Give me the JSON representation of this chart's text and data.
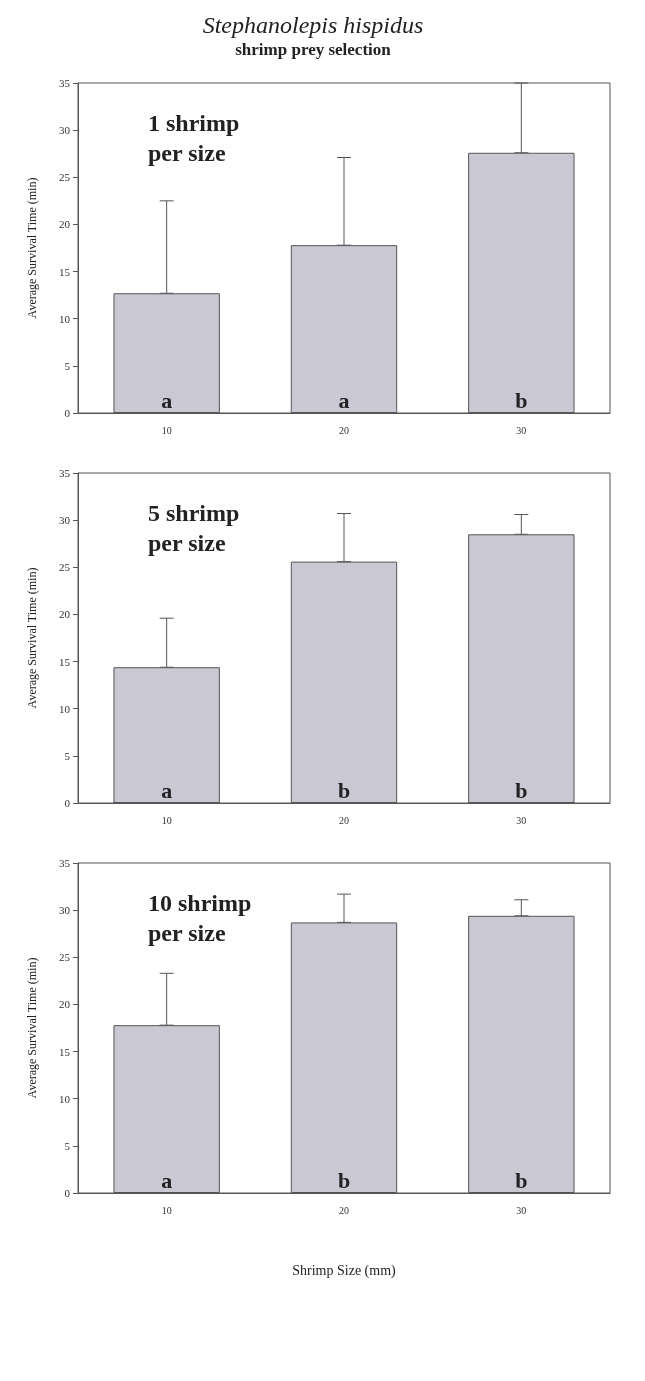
{
  "chart_data": [
    {
      "type": "bar",
      "title": "Stephanolepis hispidus",
      "subtitle": "shrimp prey selection",
      "ylabel": "Average Survival Time (min)",
      "categories": [
        "10",
        "20",
        "30"
      ],
      "values": [
        12.7,
        17.8,
        27.6
      ],
      "errors": [
        [
          12.7,
          22.5
        ],
        [
          17.8,
          27.1
        ],
        [
          27.6,
          35
        ]
      ],
      "color": "#c9c8d3",
      "ylim": [
        0,
        35
      ],
      "yticks": [
        0,
        5,
        10,
        15,
        20,
        25,
        30,
        35
      ],
      "grid": false,
      "annotations": [
        "1 shrimp\nper size",
        "a",
        "a",
        "b"
      ]
    },
    {
      "type": "bar",
      "ylabel": "Average Survival Time (min)",
      "categories": [
        "10",
        "20",
        "30"
      ],
      "values": [
        14.4,
        25.6,
        28.5
      ],
      "errors": [
        [
          14.4,
          19.6
        ],
        [
          25.6,
          30.7
        ],
        [
          28.5,
          30.6
        ]
      ],
      "color": "#c9c8d3",
      "ylim": [
        0,
        35
      ],
      "yticks": [
        0,
        5,
        10,
        15,
        20,
        25,
        30,
        35
      ],
      "grid": false,
      "annotations": [
        "5 shrimp\nper size",
        "a",
        "b",
        "b"
      ]
    },
    {
      "type": "bar",
      "xlabel": "Shrimp Size (mm)",
      "ylabel": "Average Survival Time (min)",
      "categories": [
        "10",
        "20",
        "30"
      ],
      "values": [
        17.8,
        28.7,
        29.4
      ],
      "errors": [
        [
          17.8,
          23.3
        ],
        [
          28.7,
          31.7
        ],
        [
          29.4,
          31.1
        ]
      ],
      "color": "#c9c8d3",
      "ylim": [
        0,
        35
      ],
      "yticks": [
        0,
        5,
        10,
        15,
        20,
        25,
        30,
        35
      ],
      "grid": false,
      "annotations": [
        "10 shrimp\nper size",
        "a",
        "b",
        "b"
      ]
    }
  ]
}
